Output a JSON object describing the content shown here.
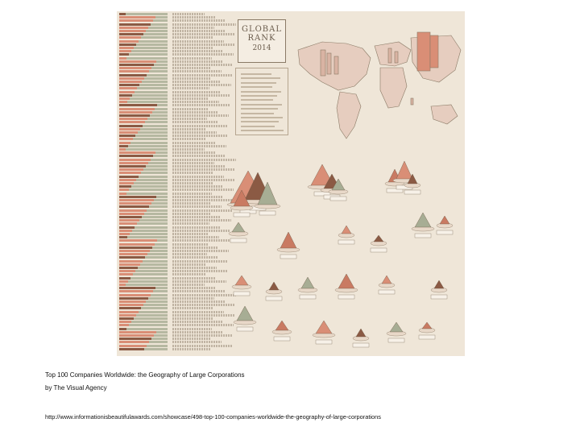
{
  "poster": {
    "title_line1": "GLOBAL",
    "title_line2": "RANK",
    "title_year": "2014",
    "alt_text": "Infographic poster: Top 100 Companies Worldwide – the geography of large corporations"
  },
  "caption": {
    "title": "Top 100 Companies Worldwide: the Geography of Large Corporations",
    "byline": "by The Visual Agency",
    "url": "http://www.informationisbeautifulawards.com/showcase/498-top-100-companies-worldwide-the-geography-of-large-corporations"
  },
  "colors": {
    "background": "#efe6d8",
    "salmon": "#d98e76",
    "brown": "#8b5a44",
    "olive": "#a7ad94"
  }
}
